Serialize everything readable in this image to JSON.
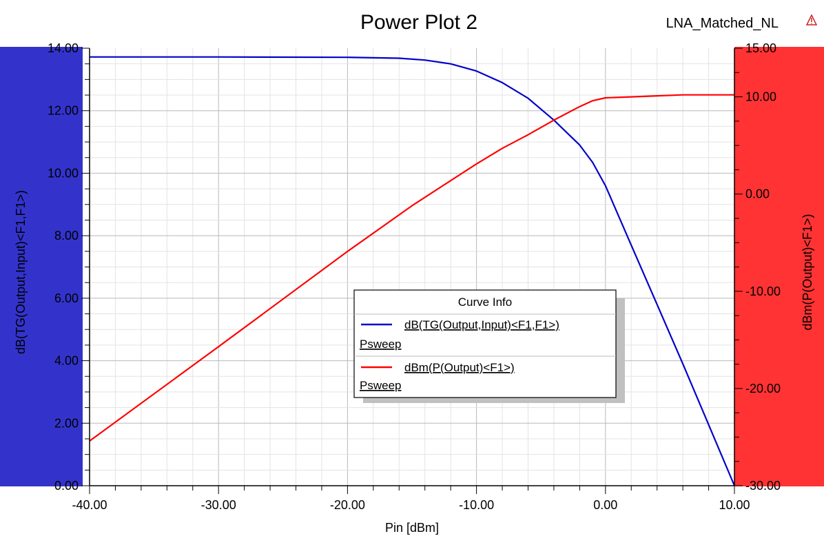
{
  "chart_data": {
    "type": "line",
    "title": "Power Plot 2",
    "design_name": "LNA_Matched_NL",
    "xlabel": "Pin [dBm]",
    "ylabel_left": "dB(TG(Output,Input)<F1,F1>)",
    "ylabel_right": "dBm(P(Output)<F1>)",
    "xlim": [
      -40,
      10
    ],
    "ylim_left": [
      0,
      14
    ],
    "ylim_right": [
      -30,
      15
    ],
    "x_ticks": [
      "-40.00",
      "-30.00",
      "-20.00",
      "-10.00",
      "0.00",
      "10.00"
    ],
    "y_left_ticks": [
      "0.00",
      "2.00",
      "4.00",
      "6.00",
      "8.00",
      "10.00",
      "12.00",
      "14.00"
    ],
    "y_right_ticks": [
      "-30.00",
      "-20.00",
      "-10.00",
      "0.00",
      "10.00",
      "15.00"
    ],
    "grid": true,
    "colors": {
      "left_axis_band": "#3333cc",
      "right_axis_band": "#ff3333",
      "gain_line": "#0000cc",
      "pout_line": "#ff0000"
    },
    "legend": {
      "title": "Curve Info",
      "placement": "center",
      "entries": [
        {
          "label": "dB(TG(Output,Input)<F1,F1>)",
          "sub": "Psweep",
          "color": "#0000cc"
        },
        {
          "label": "dBm(P(Output)<F1>)",
          "sub": "Psweep",
          "color": "#ff0000"
        }
      ]
    },
    "series": [
      {
        "axis": "left",
        "color": "#0000cc",
        "x": [
          -40,
          -30,
          -20,
          -16,
          -14,
          -12,
          -10,
          -8,
          -6,
          -4,
          -2,
          -1,
          0,
          2,
          4,
          6,
          8,
          10
        ],
        "y": [
          13.72,
          13.72,
          13.71,
          13.68,
          13.62,
          13.5,
          13.27,
          12.9,
          12.4,
          11.7,
          10.9,
          10.35,
          9.6,
          7.7,
          5.8,
          3.9,
          1.95,
          0.0
        ]
      },
      {
        "axis": "right",
        "color": "#ff0000",
        "x": [
          -40,
          -30,
          -20,
          -15,
          -10,
          -8,
          -6,
          -4,
          -2,
          -1,
          0,
          2,
          4,
          6,
          8,
          10
        ],
        "y": [
          -25.4,
          -15.7,
          -5.9,
          -1.2,
          3.1,
          4.7,
          6.1,
          7.6,
          9.0,
          9.6,
          9.9,
          10.0,
          10.1,
          10.2,
          10.2,
          10.2
        ]
      }
    ]
  }
}
